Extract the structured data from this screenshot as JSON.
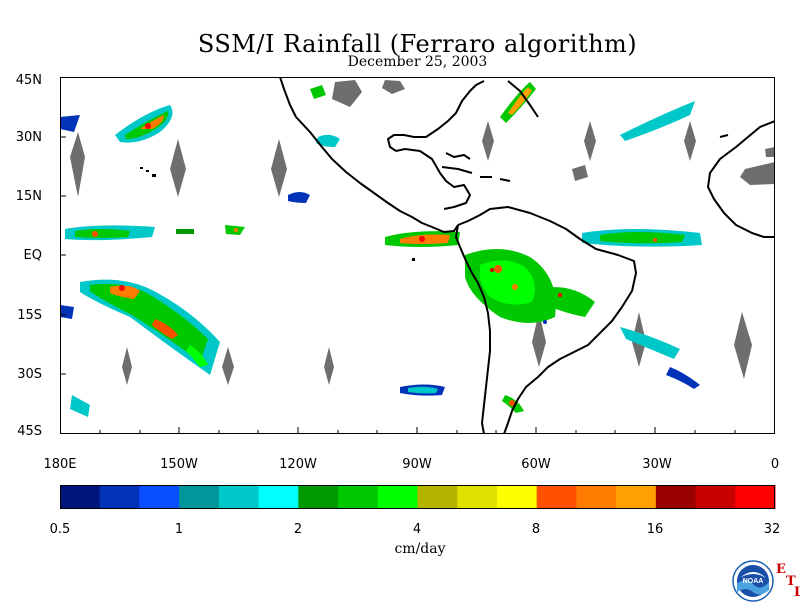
{
  "title": "SSM/I Rainfall (Ferraro algorithm)",
  "date": "December 25, 2003",
  "map": {
    "lat_labels": [
      "45N",
      "30N",
      "15N",
      "EQ",
      "15S",
      "30S",
      "45S"
    ],
    "lon_labels": [
      "180E",
      "150W",
      "120W",
      "90W",
      "60W",
      "30W",
      "0"
    ],
    "lat_range": [
      -45,
      45
    ],
    "lon_range": [
      -180,
      0
    ],
    "land_color": "#000000",
    "missing_data_color": "#6e6e6e"
  },
  "colorbar": {
    "units": "cm/day",
    "tick_labels": [
      "0.5",
      "1",
      "2",
      "4",
      "8",
      "16",
      "32"
    ],
    "colors": [
      "#00157c",
      "#0033b8",
      "#0a50ff",
      "#00979b",
      "#00c8c8",
      "#00ffff",
      "#009900",
      "#00c800",
      "#00ff00",
      "#b4b400",
      "#e1e100",
      "#ffff00",
      "#ff5000",
      "#ff7c00",
      "#ffa000",
      "#9b0000",
      "#c80000",
      "#ff0000"
    ]
  },
  "logo": {
    "text": "NOAA",
    "letters": [
      "E",
      "T",
      "L"
    ]
  }
}
